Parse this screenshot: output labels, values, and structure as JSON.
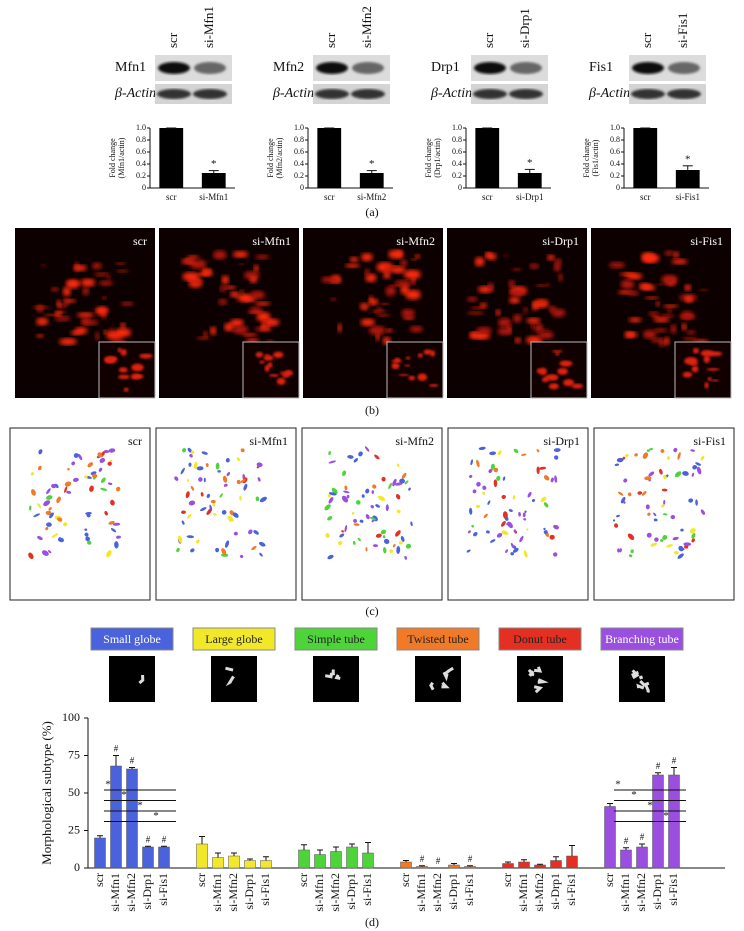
{
  "panel_labels": [
    "(a)",
    "(b)",
    "(c)",
    "(d)"
  ],
  "blots": [
    {
      "conditions": [
        "scr",
        "si-Mfn1"
      ],
      "target": "Mfn1",
      "control": "β-Actin"
    },
    {
      "conditions": [
        "scr",
        "si-Mfn2"
      ],
      "target": "Mfn2",
      "control": "β-Actin"
    },
    {
      "conditions": [
        "scr",
        "si-Drp1"
      ],
      "target": "Drp1",
      "control": "β-Actin"
    },
    {
      "conditions": [
        "scr",
        "si-Fis1"
      ],
      "target": "Fis1",
      "control": "β-Actin"
    }
  ],
  "images_b": [
    "scr",
    "si-Mfn1",
    "si-Mfn2",
    "si-Drp1",
    "si-Fis1"
  ],
  "images_c": [
    "scr",
    "si-Mfn1",
    "si-Mfn2",
    "si-Drp1",
    "si-Fis1"
  ],
  "chart_data": [
    {
      "type": "bar",
      "ylabel": [
        "Fold change",
        "(Mfn1/actin)"
      ],
      "categories": [
        "scr",
        "si-Mfn1"
      ],
      "values": [
        1,
        0.25
      ],
      "errors": [
        0,
        0.04
      ],
      "markers": [
        null,
        "*"
      ],
      "color": "#000000",
      "ylim": [
        0,
        1
      ],
      "yticks": [
        0,
        0.2,
        0.4,
        0.6,
        0.8,
        {
          "value": 1,
          "label": "1.0"
        }
      ]
    },
    {
      "type": "bar",
      "ylabel": [
        "Fold change",
        "(Mfn2/actin)"
      ],
      "categories": [
        "scr",
        "si-Mfn2"
      ],
      "values": [
        1,
        0.25
      ],
      "errors": [
        0,
        0.04
      ],
      "markers": [
        null,
        "*"
      ],
      "color": "#000000",
      "ylim": [
        0,
        1
      ],
      "yticks": [
        0,
        0.2,
        0.4,
        0.6,
        0.8,
        {
          "value": 1,
          "label": "1.0"
        }
      ]
    },
    {
      "type": "bar",
      "ylabel": [
        "Fold change",
        "(Drp1/actin)"
      ],
      "categories": [
        "scr",
        "si-Drp1"
      ],
      "values": [
        1,
        0.25
      ],
      "errors": [
        0,
        0.06
      ],
      "markers": [
        null,
        "*"
      ],
      "color": "#000000",
      "ylim": [
        0,
        1
      ],
      "yticks": [
        0,
        0.2,
        0.4,
        0.6,
        0.8,
        {
          "value": 1,
          "label": "1.0"
        }
      ]
    },
    {
      "type": "bar",
      "ylabel": [
        "Fold change",
        "(Fis1/actin)"
      ],
      "categories": [
        "scr",
        "si-Fis1"
      ],
      "values": [
        1,
        0.3
      ],
      "errors": [
        0,
        0.07
      ],
      "markers": [
        null,
        "*"
      ],
      "color": "#000000",
      "ylim": [
        0,
        1
      ],
      "yticks": [
        0,
        0.2,
        0.4,
        0.6,
        0.8,
        {
          "value": 1,
          "label": "1.0"
        }
      ]
    },
    {
      "type": "grouped_bar",
      "ylabel": "Morphological subtype (%)",
      "ylim": [
        0,
        100
      ],
      "yticks": [
        0,
        25,
        50,
        75,
        100
      ],
      "series": [
        {
          "name": "Small globe",
          "color": "#4a62dc",
          "categories": [
            "scr",
            "si-Mfn1",
            "si-Mfn2",
            "si-Drp1",
            "si-Fis1"
          ],
          "values": [
            20,
            68,
            66,
            14,
            14
          ],
          "errors": [
            1.5,
            7,
            1,
            0.5,
            0.5
          ],
          "markers": [
            null,
            "#",
            "#",
            "#",
            "#"
          ],
          "comparisons": [
            "*",
            "*",
            "*",
            "*"
          ]
        },
        {
          "name": "Large globe",
          "color": "#f2e82a",
          "categories": [
            "scr",
            "si-Mfn1",
            "si-Mfn2",
            "si-Drp1",
            "si-Fis1"
          ],
          "values": [
            16,
            7,
            8,
            5,
            5
          ],
          "errors": [
            5,
            3,
            2,
            1,
            2.5
          ]
        },
        {
          "name": "Simple tube",
          "color": "#4ed43a",
          "categories": [
            "scr",
            "si-Mfn1",
            "si-Mfn2",
            "si-Drp1",
            "si-Fis1"
          ],
          "values": [
            12,
            9,
            11,
            14,
            10
          ],
          "errors": [
            3.5,
            3,
            3,
            2,
            7
          ]
        },
        {
          "name": "Twisted tube",
          "color": "#f07a28",
          "categories": [
            "scr",
            "si-Mfn1",
            "si-Mfn2",
            "si-Drp1",
            "si-Fis1"
          ],
          "values": [
            4,
            1,
            0,
            2,
            1
          ],
          "errors": [
            1,
            0.5,
            0,
            1,
            0.5
          ],
          "markers": [
            null,
            "#",
            "#",
            null,
            "#"
          ]
        },
        {
          "name": "Donut tube",
          "color": "#e43022",
          "categories": [
            "scr",
            "si-Mfn1",
            "si-Mfn2",
            "si-Drp1",
            "si-Fis1"
          ],
          "values": [
            3,
            4,
            2,
            5,
            8
          ],
          "errors": [
            1,
            1.5,
            0.5,
            2.5,
            7
          ]
        },
        {
          "name": "Branching tube",
          "color": "#9a4fe0",
          "categories": [
            "scr",
            "si-Mfn1",
            "si-Mfn2",
            "si-Drp1",
            "si-Fis1"
          ],
          "values": [
            41,
            12,
            14,
            62,
            62
          ],
          "errors": [
            2,
            1.5,
            2,
            1.5,
            5
          ],
          "markers": [
            null,
            "#",
            "#",
            "#",
            "#"
          ],
          "comparisons": [
            "*",
            "*",
            "*",
            "*"
          ]
        }
      ]
    }
  ]
}
